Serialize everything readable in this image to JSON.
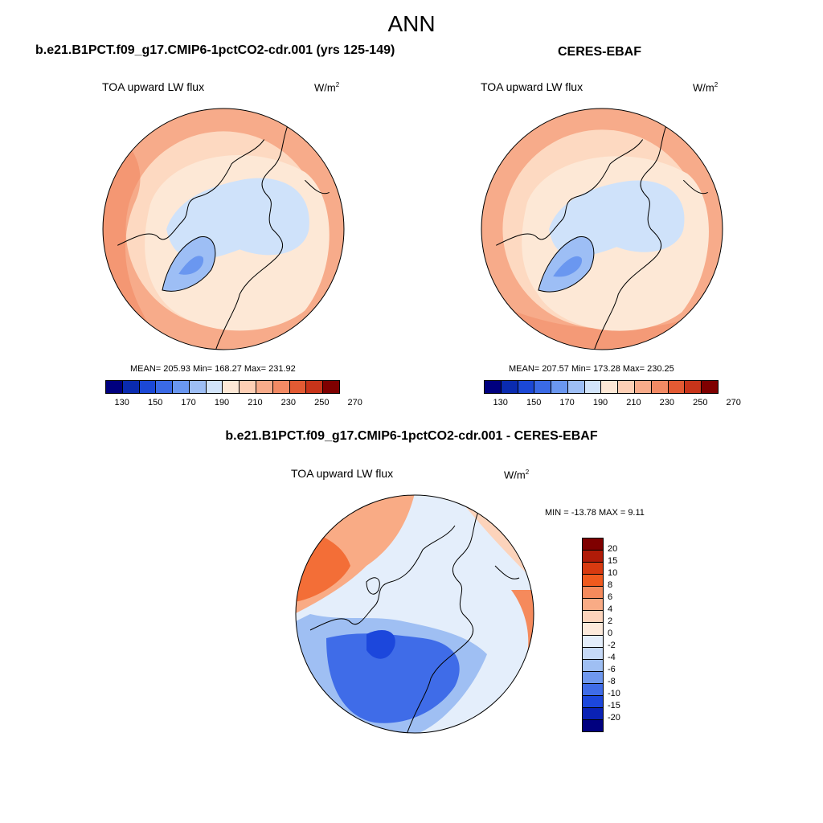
{
  "title": "ANN",
  "chart_data": [
    {
      "type": "heatmap",
      "projection": "north-polar-stereographic",
      "title": "b.e21.B1PCT.f09_g17.CMIP6-1pctCO2-cdr.001 (yrs 125-149)",
      "variable": "TOA upward LW flux",
      "units_base": "W/m",
      "units_exp": "2",
      "stats": {
        "mean": 205.93,
        "min": 168.27,
        "max": 231.92
      },
      "stats_text": "MEAN= 205.93  Min= 168.27  Max= 231.92",
      "colorbar": {
        "orientation": "horizontal",
        "levels": [
          130,
          140,
          150,
          160,
          170,
          180,
          190,
          200,
          210,
          220,
          230,
          240,
          250,
          260,
          270
        ],
        "tick_labels": [
          "130",
          "150",
          "170",
          "190",
          "210",
          "230",
          "250",
          "270"
        ]
      }
    },
    {
      "type": "heatmap",
      "projection": "north-polar-stereographic",
      "title": "CERES-EBAF",
      "variable": "TOA upward LW flux",
      "units_base": "W/m",
      "units_exp": "2",
      "stats": {
        "mean": 207.57,
        "min": 173.28,
        "max": 230.25
      },
      "stats_text": "MEAN= 207.57  Min= 173.28  Max= 230.25",
      "colorbar": {
        "orientation": "horizontal",
        "levels": [
          130,
          140,
          150,
          160,
          170,
          180,
          190,
          200,
          210,
          220,
          230,
          240,
          250,
          260,
          270
        ],
        "tick_labels": [
          "130",
          "150",
          "170",
          "190",
          "210",
          "230",
          "250",
          "270"
        ]
      }
    },
    {
      "type": "heatmap",
      "projection": "north-polar-stereographic",
      "title": "b.e21.B1PCT.f09_g17.CMIP6-1pctCO2-cdr.001 - CERES-EBAF",
      "variable": "TOA upward LW flux",
      "units_base": "W/m",
      "units_exp": "2",
      "stats": {
        "min": -13.78,
        "max": 9.11
      },
      "stats_text": "MIN = -13.78 MAX =   9.11",
      "colorbar": {
        "orientation": "vertical",
        "tick_labels": [
          "20",
          "15",
          "10",
          "8",
          "6",
          "4",
          "2",
          "0",
          "-2",
          "-4",
          "-6",
          "-8",
          "-10",
          "-15",
          "-20"
        ]
      }
    }
  ],
  "colors": {
    "abs_scale": [
      "#00007f",
      "#0a2bb0",
      "#1b48d6",
      "#3a6ae6",
      "#6a97f0",
      "#9dbef5",
      "#d2e4fa",
      "#fde8d6",
      "#fdcfb5",
      "#f7ab8a",
      "#f28a64",
      "#e35a33",
      "#c8341a",
      "#7f0000"
    ],
    "diff_scale": [
      "#7f0000",
      "#b01b08",
      "#d83a10",
      "#f05a1e",
      "#f58a5c",
      "#f9ab85",
      "#fcd3bb",
      "#fdeadb",
      "#e4eefb",
      "#c6d9f7",
      "#9fbff3",
      "#6f98ee",
      "#3f6ce8",
      "#1c47dc",
      "#0a22b5",
      "#00007f"
    ],
    "map_fill": "#fdd9c1",
    "map_warm": "#f7ab8a",
    "map_cool": "#cfe2fa",
    "map_blue": "#6a97f0",
    "coast": "#000000"
  }
}
